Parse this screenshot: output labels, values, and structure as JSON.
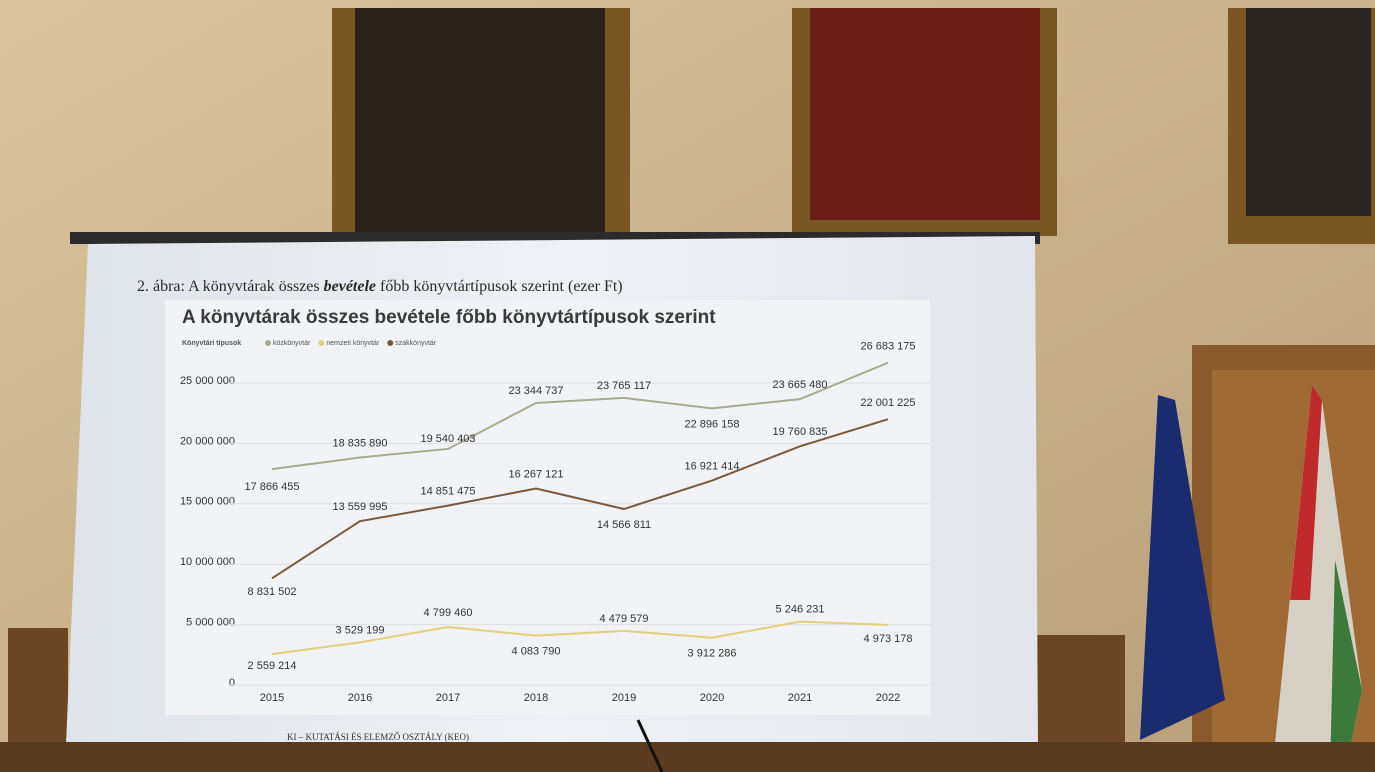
{
  "slide": {
    "caption": [
      "2. ábra: A könyvtárak összes ",
      "bevétele",
      " főbb könyvtártípusok szerint (ezer Ft)"
    ],
    "footer": "KI – KUTATÁSI ÉS ELEMZŐ OSZTÁLY (KEO)"
  },
  "chart_data": {
    "type": "line",
    "title": "A könyvtárak összes bevétele főbb könyvtártípusok szerint",
    "legend_title": "Könyvtári típusok",
    "categories": [
      "2015",
      "2016",
      "2017",
      "2018",
      "2019",
      "2020",
      "2021",
      "2022"
    ],
    "series": [
      {
        "name": "közkönyvtár",
        "color": "#a4ad8c",
        "values": [
          17866455,
          18835890,
          19540403,
          23344737,
          23765117,
          22896158,
          23665480,
          26683175
        ],
        "value_labels": [
          "17 866 455",
          "18 835 890",
          "19 540 403",
          "23 344 737",
          "23 765 117",
          "22 896 158",
          "23 665 480",
          "26 683 175"
        ]
      },
      {
        "name": "nemzeti könyvtár",
        "color": "#e3cf7c",
        "values": [
          2559214,
          3529199,
          4799460,
          4083790,
          4479579,
          3912286,
          5246231,
          4973178
        ],
        "value_labels": [
          "2 559 214",
          "3 529 199",
          "4 799 460",
          "4 083 790",
          "4 479 579",
          "3 912 286",
          "5 246 231",
          "4 973 178"
        ]
      },
      {
        "name": "szakkönyvtár",
        "color": "#7a5a3c",
        "values": [
          8831502,
          13559995,
          14851475,
          16267121,
          14566811,
          16921414,
          19760835,
          22001225
        ],
        "value_labels": [
          "8 831 502",
          "13 559 995",
          "14 851 475",
          "16 267 121",
          "14 566 811",
          "16 921 414",
          "19 760 835",
          "22 001 225"
        ]
      }
    ],
    "ylim": [
      0,
      28000000
    ],
    "yticks": [
      0,
      {
        "value": 5000000,
        "label": "5 000 000"
      },
      {
        "value": 10000000,
        "label": "10 000 000"
      },
      {
        "value": 15000000,
        "label": "15 000 000"
      },
      {
        "value": 20000000,
        "label": "20 000 000"
      },
      {
        "value": 25000000,
        "label": "25 000 000"
      }
    ],
    "grid": true
  }
}
